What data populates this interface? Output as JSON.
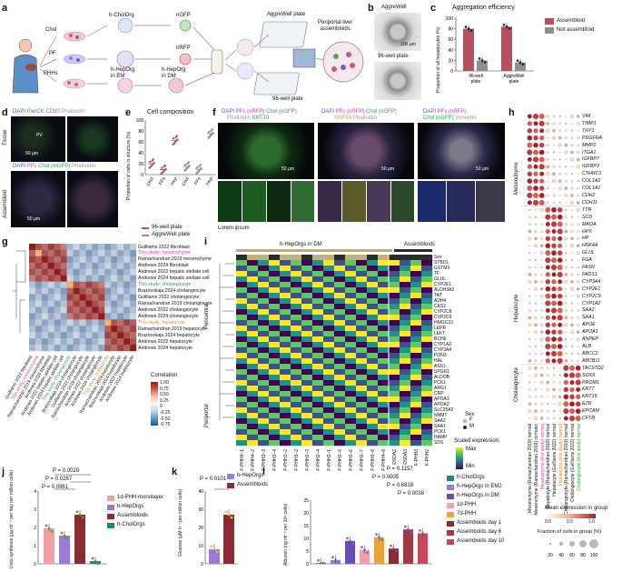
{
  "panels": {
    "a": "a",
    "b": "b",
    "c": "c",
    "d": "d",
    "e": "e",
    "f": "f",
    "g": "g",
    "h": "h",
    "i": "i",
    "j": "j",
    "k": "k",
    "l": "l"
  },
  "a": {
    "chol": "Chol",
    "pf": "PF",
    "phhs": "PHHs",
    "h_cholorg": "h-CholOrg",
    "ngfp": "nGFP",
    "nrfp": "nRFP",
    "h_heporg_em": "h-HepOrg\nin EM",
    "h_heporg_dm": "h-HepOrg\nin DM",
    "aggrewell_plate": "AggreWell plate",
    "well96_plate": "96-well plate",
    "result": "Periportal liver\nassembloids"
  },
  "b": {
    "aggrewell": "AggreWell",
    "well96": "96-well plate",
    "scale": "100 µm"
  },
  "c": {
    "title": "Aggregation efficiency",
    "ylabel": "Proportion of all hepatocytes (%)",
    "legend": [
      "Assembloid",
      "Not assembloid"
    ],
    "categories": [
      "96-well plate",
      "AggreWell plate"
    ],
    "yticks": [
      "0",
      "20",
      "40",
      "60",
      "80",
      "100"
    ]
  },
  "d": {
    "row1_legend": [
      "DAPI",
      "PanCK",
      "CD90",
      "Phalloidin"
    ],
    "row2_legend": [
      "DAPI",
      "PFs",
      "Chol (mGFP)",
      "Phalloidin"
    ],
    "row1_label": "Tissue",
    "row2_label": "Assembloid",
    "pv": "PV",
    "scale": "50 µm"
  },
  "e": {
    "title": "Cell composition",
    "ylabel": "Proportion of cells in structure (%)",
    "yticks": [
      "0",
      "20",
      "40",
      "60",
      "80",
      "100"
    ],
    "xticks": [
      "Chol",
      "PFs",
      "Hep",
      "Chol",
      "PFs",
      "Hep"
    ],
    "legend": [
      "96-well plate",
      "AggreWell plate"
    ]
  },
  "f": {
    "legend1": [
      "DAPI",
      "PFs (nRFP)",
      "Chol (nGFP)",
      "Phalloidin",
      "KRT19"
    ],
    "legend2": [
      "DAPI",
      "PFs (nRFP)",
      "Chol (nGFP)",
      "HNF4A",
      "Phalloidin"
    ],
    "legend3": [
      "DAPI",
      "PFs (nRFP)",
      "Chol (nGFP)",
      "Vimentin"
    ],
    "scale": "50 µm",
    "footer": "Lorem ipsum"
  },
  "g": {
    "labels": [
      "Guilliams 2022 fibroblast",
      "This study: mesenchyme",
      "Ramachandran 2019 mesenchyme",
      "Andrews 2024 fibroblast",
      "Andrews 2022 hepatic stellate cell",
      "Andrews 2024 hepatic stellate cell",
      "This study: cholangiocyte",
      "Brazovskaja 2024 cholangiocyte",
      "Guilliams 2022 cholangiocyte",
      "Ramachandran 2019 cholangiocyte",
      "Andrews 2022 cholangiocyte",
      "Andrews 2024 cholangiocyte",
      "This study: hepatocyte",
      "Ramachandran 2019 hepatocyte",
      "Brazovskaja 2024 hepatocyte",
      "Andrews 2022 hepatocyte",
      "Andrews 2024 hepatocyte"
    ],
    "highlight": [
      1,
      6,
      12
    ],
    "colorbar_title": "Correlation",
    "colorbar_ticks": [
      "1.00",
      "0.75",
      "0.50",
      "0.25",
      "0",
      "-0.25",
      "-0.50",
      "-0.75"
    ]
  },
  "i": {
    "header1": "h-HepOrgs in DM",
    "header2": "Assembloids",
    "genes": [
      "Sex",
      "STBD1",
      "GSTM3",
      "TF",
      "GLUL",
      "CYP2E1",
      "ALDH3A2",
      "TAT",
      "ADH4",
      "CES2",
      "CYP2C8",
      "CYP2C9",
      "HMGCS1",
      "LEPR",
      "LEFT",
      "BCHE",
      "CYP1A2",
      "CYP3A4",
      "PON3",
      "HAL",
      "ASS1",
      "SPGN1",
      "ALDOB",
      "PCK1",
      "ARG1",
      "CRP",
      "APOA1",
      "APOA2",
      "SLC25A2",
      "NNMT",
      "SAA2",
      "SAA1",
      "PCK1",
      "HAMP",
      "SDS"
    ],
    "pericentral": "Pericentral",
    "periportal": "Periportal",
    "samples": [
      "F-PHH4–1",
      "F-PHH4–2",
      "F-PHH3–3",
      "F-PHH3–4",
      "F-PHH2–2",
      "F-PHH3–2",
      "F-PHH2–3",
      "F-PHH2–4",
      "F-PHH2–1",
      "F-PHH2–5",
      "F-PHH2–6",
      "F-PHH2–7",
      "F-PHH3–8",
      "F-PHH4–8",
      "DSDA2",
      "DSDA3",
      "F-PHH3",
      "F-PHH2"
    ],
    "sex_title": "Sex",
    "sex_f": "F",
    "sex_m": "M",
    "scale_title": "Scaled expression",
    "scale_max": "Max",
    "scale_min": "Min"
  },
  "h": {
    "genes": [
      "VIM",
      "TIMP1",
      "THY1",
      "PDGFRA",
      "MMP2",
      "ITGA1",
      "IGFBP7",
      "IGFBP3",
      "CTHRC1",
      "COL1A2",
      "COL1A1",
      "CDH2",
      "CDH11",
      "TTR",
      "SCD",
      "MAOA",
      "HPX",
      "HP",
      "HNF4A",
      "GLUL",
      "FGA",
      "FASN",
      "FADS1",
      "CYP3A4",
      "CYP2E1",
      "CYP2C9",
      "CYP1A2",
      "SAA2",
      "SAA1",
      "APOE",
      "APOA1",
      "ANPEP",
      "ALB",
      "ABCC2",
      "ABCB11",
      "TACSTD2",
      "SOX9",
      "PROM1",
      "KRT7",
      "KRT19",
      "EZR",
      "EPCAM",
      "CFTR"
    ],
    "groups": [
      "Mesenchyme",
      "Hepatocyte",
      "Cholangiocyte"
    ],
    "columns": [
      "Mesenchyme (Ramachandran 2019) normal",
      "Mesenchyme (Ramachandran 2019) cirrhotic",
      "Mesenchyme (this study) normal",
      "Hepatocyte (Ramachandran 2019) normal",
      "Hepatocyte (Guilliams 2022) normal",
      "Hepatocyte (this study) normal",
      "Cholangiocyte (Ramachandran 2019) normal",
      "Cholangiocyte (Guilliams 2022) normal",
      "Cholangiocyte (this study) normal"
    ],
    "mean_title": "Mean expression in group",
    "mean_ticks": [
      "0.0",
      "0.5",
      "1.0"
    ],
    "frac_title": "Fraction of cells in group (%)",
    "frac_ticks": [
      "20",
      "40",
      "60",
      "80",
      "100"
    ]
  },
  "j": {
    "ylabel": "Urea synthesis (µg ml⁻¹ per day per million cells)",
    "pvals": [
      "P = 0.0020",
      "P = 0.0287",
      "P = 0.0981"
    ],
    "legend": [
      "1d-PHH monolayer",
      "h-HepOrgs",
      "Assembloids",
      "h-CholOrgs"
    ],
    "yticks": [
      "0",
      "1",
      "2",
      "3",
      "4"
    ]
  },
  "k": {
    "ylabel": "Glucose (µM h⁻¹ per million cells)",
    "pval": "P = 0.0101",
    "legend": [
      "h-HepOrgs",
      "Assembloids"
    ],
    "yticks": [
      "0",
      "10",
      "20",
      "30",
      "40"
    ]
  },
  "l": {
    "ylabel": "Albumin (ng ml⁻¹ per 10⁶ cells)",
    "pvals": [
      "P = 0.1157",
      "P = 0.0005",
      "P = 0.6818",
      "P = 0.0036"
    ],
    "legend": [
      "h-CholOrgs",
      "h-HepOrgs in EM2",
      "h-HepOrgs in DM",
      "1d-PHH",
      "7d-PHH",
      "Assemboids day 1",
      "Assemboids day 6",
      "Assemboids day 10"
    ],
    "yticks": [
      "0",
      "5",
      "10",
      "15",
      "20",
      "25"
    ]
  },
  "chart_data": [
    {
      "type": "bar",
      "title": "Aggregation efficiency",
      "ylabel": "Proportion of all hepatocytes (%)",
      "categories": [
        "96-well plate",
        "AggreWell plate"
      ],
      "ylim": [
        0,
        100
      ],
      "series": [
        {
          "name": "Assembloid",
          "values": [
            80,
            84
          ],
          "color": "#b5525e"
        },
        {
          "name": "Not assembloid",
          "values": [
            20,
            16
          ],
          "color": "#8f8f8f"
        }
      ]
    },
    {
      "type": "scatter",
      "title": "Cell composition",
      "ylabel": "Proportion of cells in structure (%)",
      "categories": [
        "Chol",
        "PFs",
        "Hep",
        "Chol",
        "PFs",
        "Hep"
      ],
      "ylim": [
        0,
        100
      ],
      "series": [
        {
          "name": "96-well plate",
          "values": [
            20,
            9,
            63,
            null,
            null,
            null
          ],
          "color": "#b5525e"
        },
        {
          "name": "AggreWell plate",
          "values": [
            null,
            null,
            null,
            15,
            10,
            75
          ],
          "color": "#8f8f8f"
        }
      ]
    },
    {
      "type": "bar",
      "ylabel": "Urea synthesis",
      "categories": [
        "1d-PHH monolayer",
        "h-HepOrgs",
        "Assembloids",
        "h-CholOrgs"
      ],
      "ylim": [
        0,
        4
      ],
      "values": [
        1.95,
        1.55,
        2.7,
        0.15
      ]
    },
    {
      "type": "bar",
      "ylabel": "Glucose",
      "categories": [
        "h-HepOrgs",
        "Assembloids"
      ],
      "ylim": [
        0,
        40
      ],
      "values": [
        8,
        27
      ]
    },
    {
      "type": "bar",
      "ylabel": "Albumin",
      "categories": [
        "h-CholOrgs",
        "h-HepOrgs in EM2",
        "h-HepOrgs in DM",
        "1d-PHH",
        "7d-PHH",
        "Assemboids day 1",
        "Assemboids day 6",
        "Assemboids day 10"
      ],
      "ylim": [
        0,
        25
      ],
      "values": [
        0.3,
        1.5,
        9,
        5.5,
        10.5,
        6,
        13.5,
        12
      ]
    }
  ],
  "colors": {
    "assembloid": "#b5525e",
    "not_assembloid": "#8f8f8f",
    "phh": "#f29fa8",
    "heporg": "#9b7ad8",
    "asm": "#8b2b33",
    "chol": "#1a8a7c",
    "green_text": "#2aa34a",
    "magenta_text": "#d23fb3",
    "pink_text": "#e05a9b"
  }
}
